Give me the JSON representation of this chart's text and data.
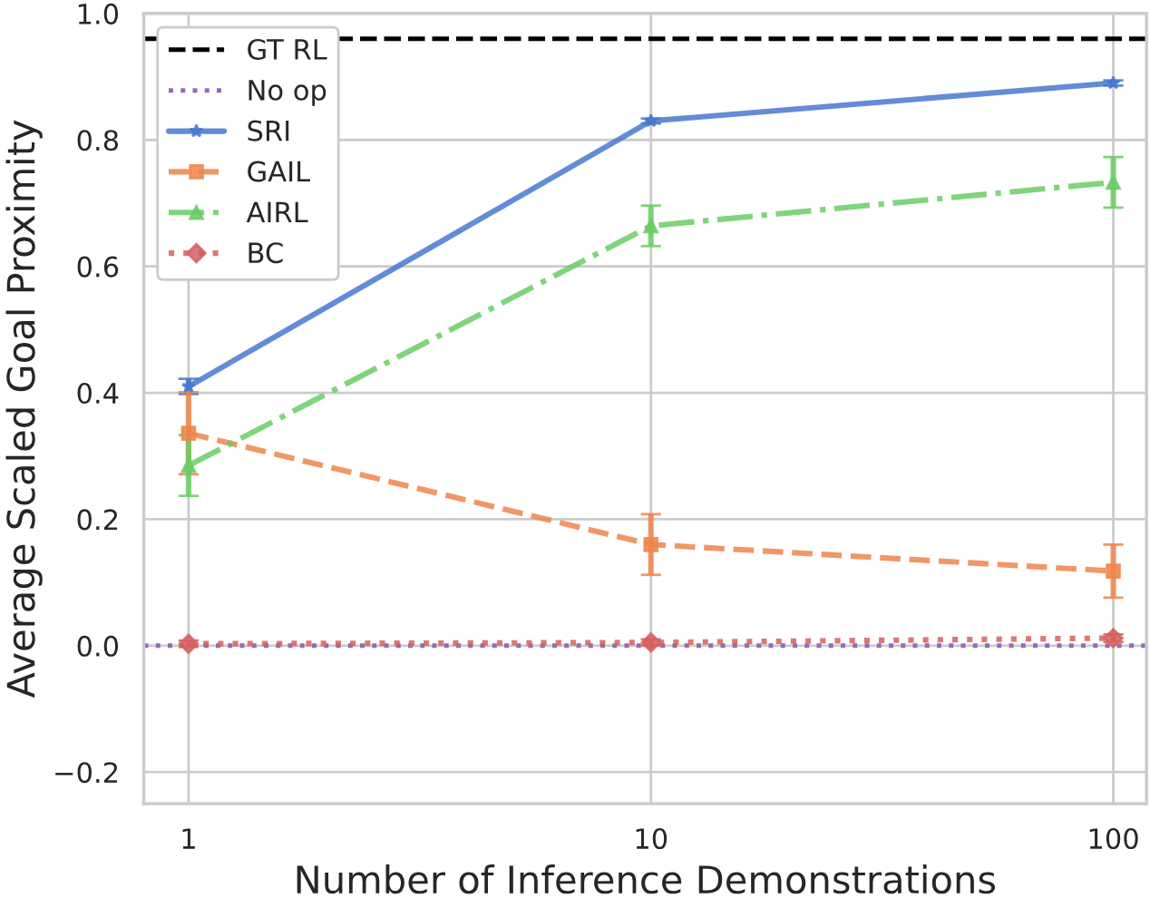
{
  "chart_data": {
    "type": "line",
    "xlabel": "Number of Inference Demonstrations",
    "ylabel": "Average Scaled Goal Proximity",
    "x": [
      1,
      10,
      100
    ],
    "log": "x",
    "xlim": [
      0.8,
      118
    ],
    "xticks": [
      1,
      10,
      100
    ],
    "ylim": [
      -0.25,
      1.0
    ],
    "yticks": [
      {
        "value": -0.2,
        "label": "−0.2"
      },
      {
        "value": 0.0,
        "label": "0.0"
      },
      {
        "value": 0.2,
        "label": "0.2"
      },
      {
        "value": 0.4,
        "label": "0.4"
      },
      {
        "value": 0.6,
        "label": "0.6"
      },
      {
        "value": 0.8,
        "label": "0.8"
      },
      {
        "value": 1.0,
        "label": "1.0"
      }
    ],
    "grid": true,
    "legend": "top left",
    "ref_lines": [
      {
        "axis": "y",
        "value": 0.96,
        "label": "GT RL",
        "color": "#000000",
        "line_style": "dashed"
      },
      {
        "axis": "y",
        "value": 0.0,
        "label": "No op",
        "color": "#956cb4",
        "line_style": "dotted"
      }
    ],
    "series": [
      {
        "name": "SRI",
        "color": "#4878d0",
        "marker": "star",
        "line_style": "solid",
        "values": [
          0.41,
          0.83,
          0.89
        ],
        "errors": [
          0.012,
          0.004,
          0.004
        ]
      },
      {
        "name": "GAIL",
        "color": "#ee854a",
        "marker": "square",
        "line_style": "dashed",
        "values": [
          0.336,
          0.16,
          0.118
        ],
        "errors": [
          0.065,
          0.048,
          0.042
        ]
      },
      {
        "name": "AIRL",
        "color": "#6acc64",
        "marker": "triangle",
        "line_style": "dashdot",
        "values": [
          0.285,
          0.664,
          0.733
        ],
        "errors": [
          0.048,
          0.032,
          0.04
        ]
      },
      {
        "name": "BC",
        "color": "#d65f5f",
        "marker": "diamond",
        "line_style": "dotted",
        "values": [
          0.003,
          0.005,
          0.012
        ],
        "errors": [
          0.005,
          0.005,
          0.006
        ]
      }
    ]
  }
}
